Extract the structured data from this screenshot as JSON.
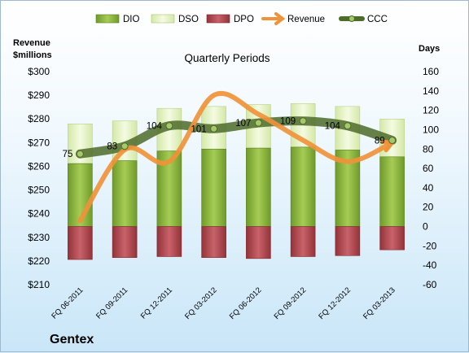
{
  "chart_data": {
    "type": "bar",
    "title": "Quarterly Periods",
    "company": "Gentex",
    "left_axis_label": [
      "Revenue",
      "$millions"
    ],
    "right_axis_label": "Days",
    "categories": [
      "FQ 06-2011",
      "FQ 09-2011",
      "FQ 12-2011",
      "FQ 03-2012",
      "FQ 06-2012",
      "FQ 09-2012",
      "FQ 12-2012",
      "FQ 03-2013"
    ],
    "left_ylim": [
      210,
      300
    ],
    "left_ticks": [
      "$210",
      "$220",
      "$230",
      "$240",
      "$250",
      "$260",
      "$270",
      "$280",
      "$290",
      "$300"
    ],
    "right_ylim": [
      -60,
      160
    ],
    "right_ticks": [
      "-60",
      "-40",
      "-20",
      "0",
      "20",
      "40",
      "60",
      "80",
      "100",
      "120",
      "140",
      "160"
    ],
    "grid": false,
    "legend_position": "top",
    "series": [
      {
        "name": "DIO",
        "axis": "right",
        "kind": "stacked-bar",
        "color": "#8db43c",
        "values": [
          65,
          68,
          78,
          80,
          81,
          82,
          79,
          72
        ]
      },
      {
        "name": "DSO",
        "axis": "right",
        "kind": "stacked-bar",
        "color": "#e4f2c3",
        "values": [
          41,
          41,
          44,
          44,
          45,
          45,
          45,
          39
        ]
      },
      {
        "name": "DPO",
        "axis": "right",
        "kind": "bar-below-zero",
        "color": "#b5474e",
        "values": [
          -34,
          -32,
          -31,
          -32,
          -33,
          -31,
          -30,
          -24
        ]
      },
      {
        "name": "Revenue",
        "axis": "left",
        "kind": "line",
        "color": "#f0923a",
        "values": [
          237,
          267,
          262,
          290,
          282,
          271,
          262,
          270
        ]
      },
      {
        "name": "CCC",
        "axis": "right",
        "kind": "line",
        "color": "#4d6b2a",
        "values": [
          75,
          83,
          104,
          101,
          107,
          109,
          104,
          89
        ],
        "labels": [
          "75",
          "83",
          "104",
          "101",
          "107",
          "109",
          "104",
          "89"
        ]
      }
    ]
  }
}
